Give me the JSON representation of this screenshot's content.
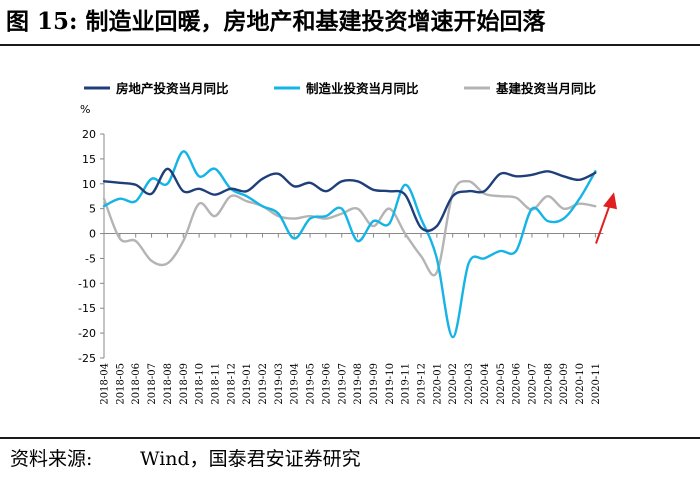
{
  "figure": {
    "title": "图 15:  制造业回暖，房地产和基建投资增速开始回落",
    "source_label": "资料来源:",
    "source_text": "Wind，国泰君安证券研究"
  },
  "chart_data": {
    "type": "line",
    "ylabel": "%",
    "ylim": [
      -25,
      20
    ],
    "yticks": [
      -25,
      -20,
      -15,
      -10,
      -5,
      0,
      5,
      10,
      15,
      20
    ],
    "legend_position": "top",
    "x": [
      "2018-04",
      "2018-05",
      "2018-06",
      "2018-07",
      "2018-08",
      "2018-09",
      "2018-10",
      "2018-11",
      "2018-12",
      "2019-01",
      "2019-02",
      "2019-03",
      "2019-04",
      "2019-05",
      "2019-06",
      "2019-07",
      "2019-08",
      "2019-09",
      "2019-10",
      "2019-11",
      "2019-12",
      "2020-01",
      "2020-02",
      "2020-03",
      "2020-04",
      "2020-05",
      "2020-06",
      "2020-07",
      "2020-08",
      "2020-09",
      "2020-10",
      "2020-11"
    ],
    "series": [
      {
        "name": "房地产投资当月同比",
        "color": "#1f3f7a",
        "values": [
          10.5,
          10.2,
          9.8,
          8.0,
          13.0,
          8.5,
          9.0,
          7.8,
          9.0,
          8.5,
          11.0,
          12.0,
          9.5,
          10.2,
          8.5,
          10.5,
          10.5,
          8.8,
          8.5,
          7.8,
          1.2,
          1.5,
          7.5,
          8.5,
          8.5,
          12.0,
          11.5,
          11.8,
          12.5,
          11.5,
          10.8,
          12.2
        ]
      },
      {
        "name": "制造业投资当月同比",
        "color": "#14b4e6",
        "values": [
          5.5,
          7.0,
          6.5,
          11.0,
          10.0,
          16.5,
          11.5,
          13.0,
          9.0,
          7.5,
          5.5,
          4.0,
          -1.0,
          3.0,
          3.5,
          5.0,
          -1.5,
          2.5,
          2.0,
          9.8,
          3.0,
          -5.0,
          -20.8,
          -6.0,
          -5.0,
          -3.5,
          -3.5,
          5.0,
          2.5,
          3.0,
          7.0,
          12.5
        ]
      },
      {
        "name": "基建投资当月同比",
        "color": "#b4b4b4",
        "values": [
          7.0,
          -1.0,
          -1.5,
          -5.5,
          -6.0,
          -1.5,
          6.0,
          3.5,
          7.5,
          6.5,
          5.5,
          3.5,
          3.0,
          3.5,
          3.0,
          4.0,
          5.0,
          1.5,
          5.0,
          0.0,
          -4.5,
          -7.8,
          8.0,
          10.5,
          8.0,
          7.5,
          7.2,
          4.8,
          7.5,
          5.0,
          6.0,
          5.5
        ]
      }
    ],
    "annotations": [
      {
        "type": "arrow",
        "color": "#e02020",
        "direction": "up-right",
        "near_category": "2020-11"
      }
    ]
  }
}
